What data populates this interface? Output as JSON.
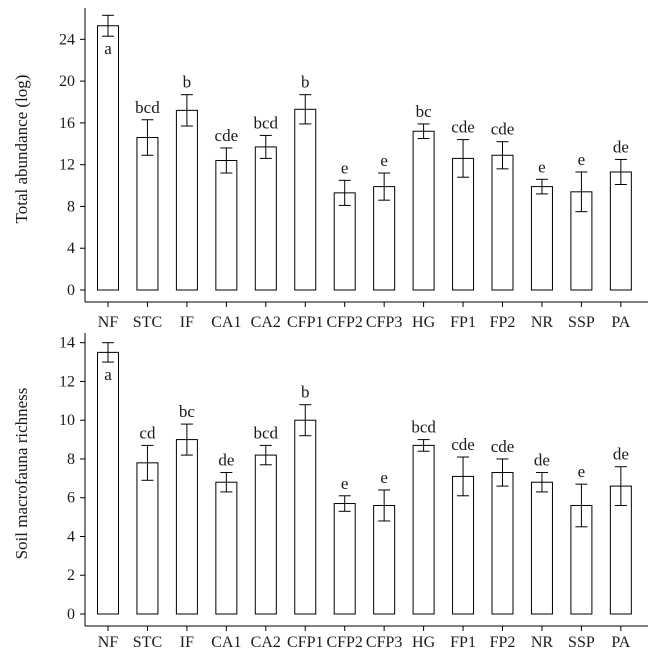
{
  "chart_data": [
    {
      "type": "bar",
      "ylabel": "Total abundance (log)",
      "xlabel": "",
      "ylim": [
        0,
        27
      ],
      "yticks": [
        0,
        4,
        8,
        12,
        16,
        20,
        24
      ],
      "categories": [
        "NF",
        "STC",
        "IF",
        "CA1",
        "CA2",
        "CFP1",
        "CFP2",
        "CFP3",
        "HG",
        "FP1",
        "FP2",
        "NR",
        "SSP",
        "PA"
      ],
      "values": [
        25.3,
        14.6,
        17.2,
        12.4,
        13.7,
        17.3,
        9.3,
        9.9,
        15.2,
        12.6,
        12.9,
        9.9,
        9.4,
        11.3
      ],
      "errors": [
        1.0,
        1.7,
        1.5,
        1.2,
        1.1,
        1.4,
        1.2,
        1.3,
        0.7,
        1.8,
        1.3,
        0.7,
        1.9,
        1.2
      ],
      "letters": [
        "a",
        "bcd",
        "b",
        "cde",
        "bcd",
        "b",
        "e",
        "e",
        "bc",
        "cde",
        "cde",
        "e",
        "e",
        "de"
      ]
    },
    {
      "type": "bar",
      "ylabel": "Soil macrofauna richness",
      "xlabel": "",
      "ylim": [
        0,
        14.5
      ],
      "yticks": [
        0,
        2,
        4,
        6,
        8,
        10,
        12,
        14
      ],
      "categories": [
        "NF",
        "STC",
        "IF",
        "CA1",
        "CA2",
        "CFP1",
        "CFP2",
        "CFP3",
        "HG",
        "FP1",
        "FP2",
        "NR",
        "SSP",
        "PA"
      ],
      "values": [
        13.5,
        7.8,
        9.0,
        6.8,
        8.2,
        10.0,
        5.7,
        5.6,
        8.7,
        7.1,
        7.3,
        6.8,
        5.6,
        6.6
      ],
      "errors": [
        0.5,
        0.9,
        0.8,
        0.5,
        0.5,
        0.8,
        0.4,
        0.8,
        0.3,
        1.0,
        0.7,
        0.5,
        1.1,
        1.0
      ],
      "letters": [
        "a",
        "cd",
        "bc",
        "de",
        "bcd",
        "b",
        "e",
        "e",
        "bcd",
        "cde",
        "cde",
        "de",
        "e",
        "de"
      ]
    }
  ]
}
